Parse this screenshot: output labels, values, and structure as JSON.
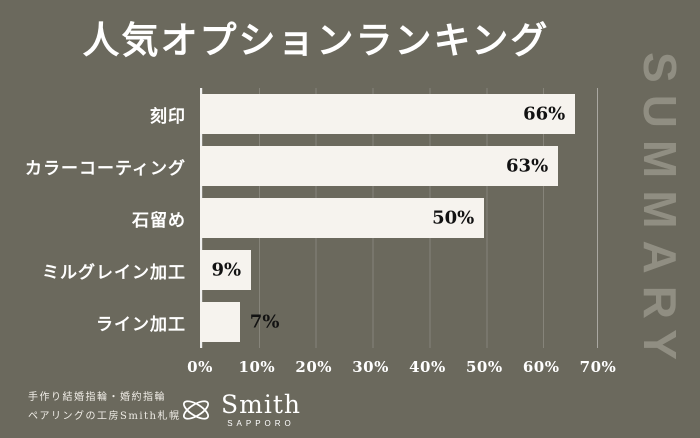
{
  "title": "人気オプションランキング",
  "sidebar_label": "SUMMARY",
  "chart_data": {
    "type": "bar",
    "orientation": "horizontal",
    "title": "人気オプションランキング",
    "categories": [
      "刻印",
      "カラーコーティング",
      "石留め",
      "ミルグレイン加工",
      "ライン加工"
    ],
    "values": [
      66,
      63,
      50,
      9,
      7
    ],
    "value_labels": [
      "66%",
      "63%",
      "50%",
      "9%",
      "7%"
    ],
    "x_ticks": [
      "0%",
      "10%",
      "20%",
      "30%",
      "40%",
      "50%",
      "60%",
      "70%"
    ],
    "xlim": [
      0,
      70
    ],
    "grid": true,
    "legend": "none",
    "bar_color": "#f6f3ee",
    "background_color": "#6b695d",
    "label_color": "#ffffff",
    "value_color": "#121212",
    "summary_color": "#908e82"
  },
  "footer": {
    "credit_line1": "手作り結婚指輪・婚約指輪",
    "credit_line2": "ペアリングの工房Smith札幌",
    "logo_text": "Smith",
    "logo_sub": "SAPPORO"
  }
}
